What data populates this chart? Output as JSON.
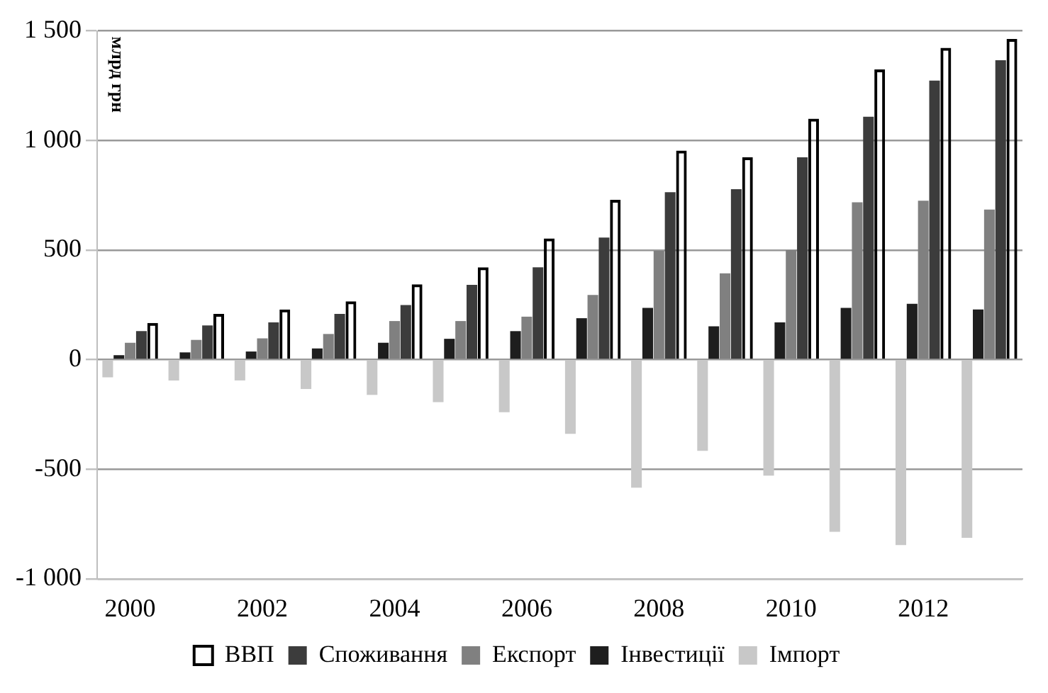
{
  "chart_data": {
    "type": "bar",
    "ylabel": "млрд грн",
    "categories": [
      "2000",
      null,
      "2002",
      null,
      "2004",
      null,
      "2006",
      null,
      "2008",
      null,
      "2010",
      null,
      "2012",
      null
    ],
    "series": [
      {
        "name": "ВВП",
        "color": "#000000",
        "values": [
          167,
          209,
          229,
          266,
          344,
          421,
          553,
          729,
          954,
          923,
          1099,
          1324,
          1423,
          1463
        ]
      },
      {
        "name": "Споживання",
        "color": "#3c3c3c",
        "values": [
          130,
          156,
          170,
          209,
          249,
          341,
          421,
          557,
          764,
          778,
          923,
          1108,
          1273,
          1366
        ]
      },
      {
        "name": "Експорт",
        "color": "#808080",
        "values": [
          77,
          90,
          97,
          117,
          176,
          176,
          196,
          295,
          496,
          394,
          500,
          718,
          725,
          685
        ]
      },
      {
        "name": "Інвестиції",
        "color": "#1e1e1e",
        "values": [
          20,
          33,
          37,
          51,
          77,
          95,
          130,
          189,
          236,
          152,
          170,
          236,
          255,
          229
        ]
      },
      {
        "name": "Імпорт",
        "color": "#c8c8c8",
        "values": [
          -81,
          -95,
          -95,
          -134,
          -161,
          -194,
          -240,
          -339,
          -584,
          -416,
          -529,
          -786,
          -846,
          -813
        ]
      }
    ],
    "ylim": [
      -1000,
      1500
    ],
    "yticks": [
      {
        "value": -1000,
        "label": "-1 000"
      },
      -500,
      0,
      500,
      {
        "value": 1000,
        "label": "1 000"
      },
      {
        "value": 1500,
        "label": "1 500"
      }
    ],
    "grid": "y",
    "legend": "bottom"
  }
}
